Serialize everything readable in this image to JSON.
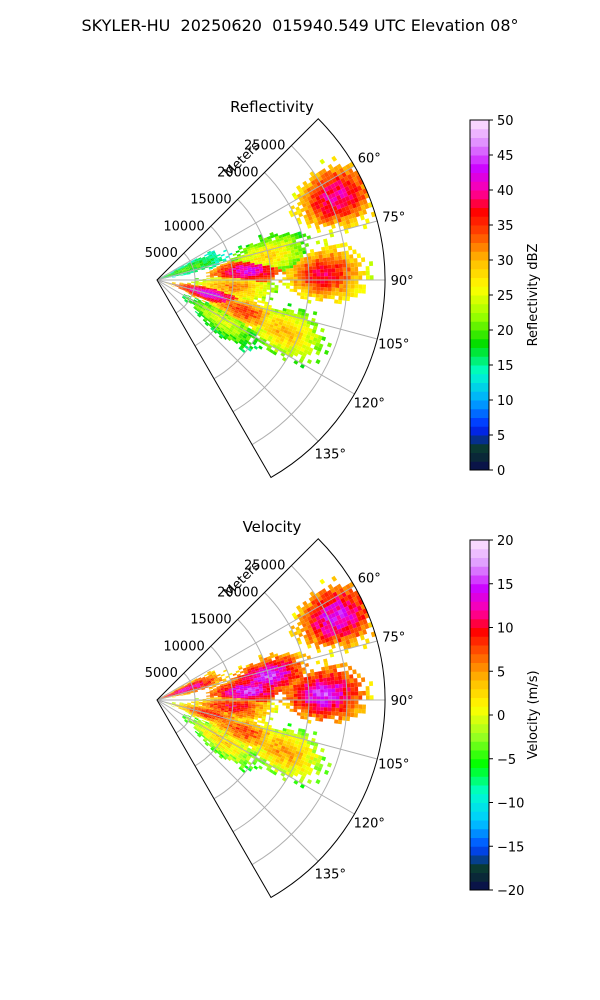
{
  "suptitle": "SKYLER-HU  20250620  015940.549 UTC Elevation 08°",
  "colors": {
    "grid": "#b0b0b0",
    "axis": "#000000"
  },
  "chart_data": [
    {
      "type": "heatmap",
      "title": "Reflectivity",
      "radial_label": "Meters",
      "radial_ticks": [
        5000,
        10000,
        15000,
        20000,
        25000
      ],
      "radial_tick_labels": [
        "5000",
        "10000",
        "15000",
        "20000",
        "25000"
      ],
      "rlim": [
        0,
        30000
      ],
      "azimuth_range": [
        45,
        150
      ],
      "azimuth_ticks": [
        60,
        75,
        90,
        105,
        120,
        135
      ],
      "azimuth_tick_labels": [
        "60°",
        "75°",
        "90°",
        "105°",
        "120°",
        "135°"
      ],
      "colorbar": {
        "label": "Reflectivity dBZ",
        "range": [
          0,
          50
        ],
        "ticks": [
          0,
          5,
          10,
          15,
          20,
          25,
          30,
          35,
          40,
          45,
          50
        ],
        "tick_labels": [
          "0",
          "5",
          "10",
          "15",
          "20",
          "25",
          "30",
          "35",
          "40",
          "45",
          "50"
        ]
      },
      "echo_cells": [
        {
          "az": 65,
          "r": 26000,
          "value": 40
        },
        {
          "az": 78,
          "r": 15000,
          "value": 28
        },
        {
          "az": 84,
          "r": 12000,
          "value": 42
        },
        {
          "az": 88,
          "r": 22000,
          "value": 38
        },
        {
          "az": 95,
          "r": 10000,
          "value": 32
        },
        {
          "az": 105,
          "r": 7000,
          "value": 43
        },
        {
          "az": 110,
          "r": 12000,
          "value": 35
        },
        {
          "az": 112,
          "r": 18000,
          "value": 30
        },
        {
          "az": 122,
          "r": 10000,
          "value": 25
        },
        {
          "az": 70,
          "r": 4000,
          "value": 20
        }
      ]
    },
    {
      "type": "heatmap",
      "title": "Velocity",
      "radial_label": "Meters",
      "radial_ticks": [
        5000,
        10000,
        15000,
        20000,
        25000
      ],
      "radial_tick_labels": [
        "5000",
        "10000",
        "15000",
        "20000",
        "25000"
      ],
      "rlim": [
        0,
        30000
      ],
      "azimuth_range": [
        45,
        150
      ],
      "azimuth_ticks": [
        60,
        75,
        90,
        105,
        120,
        135
      ],
      "azimuth_tick_labels": [
        "60°",
        "75°",
        "90°",
        "105°",
        "120°",
        "135°"
      ],
      "colorbar": {
        "label": "Velocity (m/s)",
        "range": [
          -20,
          20
        ],
        "ticks": [
          -20,
          -15,
          -10,
          -5,
          0,
          5,
          10,
          15,
          20
        ],
        "tick_labels": [
          "−20",
          "−15",
          "−10",
          "−5",
          "0",
          "5",
          "10",
          "15",
          "20"
        ]
      },
      "echo_cells": [
        {
          "az": 65,
          "r": 26000,
          "value": 14
        },
        {
          "az": 78,
          "r": 15000,
          "value": 15
        },
        {
          "az": 84,
          "r": 12000,
          "value": 15
        },
        {
          "az": 88,
          "r": 22000,
          "value": 15
        },
        {
          "az": 95,
          "r": 10000,
          "value": 10
        },
        {
          "az": 105,
          "r": 7000,
          "value": 9
        },
        {
          "az": 110,
          "r": 12000,
          "value": 8
        },
        {
          "az": 112,
          "r": 18000,
          "value": 5
        },
        {
          "az": 122,
          "r": 10000,
          "value": 3
        },
        {
          "az": 70,
          "r": 4000,
          "value": 13
        }
      ]
    }
  ]
}
